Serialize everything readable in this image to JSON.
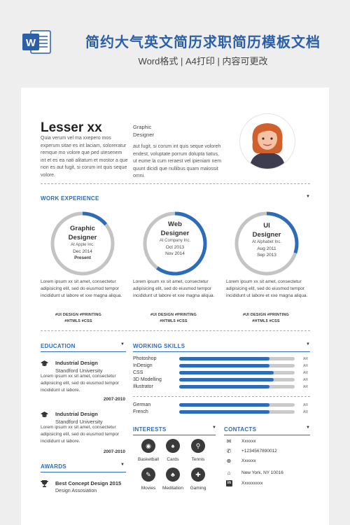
{
  "header": {
    "title": "简约大气英文简历求职简历模板文档",
    "subtitle": "Word格式 | A4打印 | 内容可更改"
  },
  "profile": {
    "name": "Lesser xx",
    "intro": "Quia verum vel ma xxepero mos experum sitae es int laciam, soloreratur remque mo volore que ped utesenem int et es ea nati alitatum et mostor a que non es aut fugit, si corum int quis seque volore.",
    "role_line1": "Graphic",
    "role_line2": "Designer",
    "intro2": "aut fugit, si corum int quis seque voloreh endest, voluptate porrum dolupta tiatus, ut eume la cum reraest vel ipieniam nem quunt dicidi que nullibus quam maiossit omni."
  },
  "work": {
    "title": "WORK EXPERIENCE",
    "items": [
      {
        "title1": "Graphic",
        "title2": "Designer",
        "company": "At Apple Inc.",
        "date1": "Dec 2014",
        "date2": "Present",
        "progress": 0.14,
        "text": "Lorem ipsum xx sit amet, consectetur adipisicing elit, sed do eiusmod tempor incididunt ut labore et xxe magna aliqua.",
        "tags1": "#UI DESIGN   #PRINTING",
        "tags2": "#HTML5   #CSS"
      },
      {
        "title1": "Web",
        "title2": "Designer",
        "company": "At Company Inc.",
        "date1": "Oct 2013",
        "date2": "Nov 2014",
        "progress": 0.6,
        "text": "Lorem ipsum xx sit amet, consectetur adipisicing elit, sed do eiusmod tempor incididunt ut labore et xxe magna aliqua.",
        "tags1": "#UI DESIGN   #PRINTING",
        "tags2": "#HTML5   #CSS"
      },
      {
        "title1": "UI",
        "title2": "Designer",
        "company": "At Alphabet Inc.",
        "date1": "Aug 2011",
        "date2": "Sep 2013",
        "progress": 0.3,
        "text": "Lorem ipsum xx sit amet, consectetur adipisicing elit, sed do eiusmod tempor incididunt ut labore et xxe magna aliqua.",
        "tags1": "#UI DESIGN   #PRINTING",
        "tags2": "#HTML5   #CSS"
      }
    ]
  },
  "education": {
    "title": "EDUCATION",
    "items": [
      {
        "heading": "Industrial Design",
        "school": "Standford University",
        "text": "Lorem ipsum xx sit amet, consectetur adipisicing elit, sed do eiusmod tempor incididunt ut labore.",
        "years": "2007-2010"
      },
      {
        "heading": "Industrial Design",
        "school": "Standford University",
        "text": "Lorem ipsum xx sit amet, consectetur adipisicing elit, sed do eiusmod tempor incididunt ut labore.",
        "years": "2007-2010"
      }
    ]
  },
  "skills": {
    "title": "WORKING SKILLS",
    "items": [
      {
        "name": "Photoshop",
        "level": 0.78,
        "end": "AR"
      },
      {
        "name": "InDesign",
        "level": 0.78,
        "end": "AR"
      },
      {
        "name": "CSS",
        "level": 0.82,
        "end": "AR"
      },
      {
        "name": "3D Modelling",
        "level": 0.82,
        "end": "AR"
      },
      {
        "name": "Illustrator",
        "level": 0.78,
        "end": "AR"
      }
    ],
    "languages": [
      {
        "name": "German",
        "level": 0.78,
        "end": "AR"
      },
      {
        "name": "French",
        "level": 0.78,
        "end": "AR"
      }
    ]
  },
  "interests": {
    "title": "INTERESTS",
    "items": [
      {
        "label": "Basketball",
        "icon": "basketball-icon"
      },
      {
        "label": "Cards",
        "icon": "cards-icon"
      },
      {
        "label": "Tennis",
        "icon": "tennis-icon"
      },
      {
        "label": "Movies",
        "icon": "movies-icon"
      },
      {
        "label": "Meditation",
        "icon": "meditation-icon"
      },
      {
        "label": "Gaming",
        "icon": "gaming-icon"
      }
    ]
  },
  "contacts": {
    "title": "CONTACTS",
    "items": [
      {
        "icon": "email-icon",
        "text": "Xxxxxx"
      },
      {
        "icon": "phone-icon",
        "text": "+1234567890012"
      },
      {
        "icon": "globe-icon",
        "text": "Xxxxxx"
      },
      {
        "icon": "home-icon",
        "text": "New York, NY 10016"
      },
      {
        "icon": "linkedin-icon",
        "text": "Xxxxxxxxx"
      }
    ]
  },
  "awards": {
    "title": "AWARDS",
    "heading": "Best Concept Design 2015",
    "sub": "Design Assosiation"
  },
  "colors": {
    "accent": "#2d6cb8",
    "ring_track": "#c4c4c4",
    "bar_track": "#c9c9c9"
  }
}
